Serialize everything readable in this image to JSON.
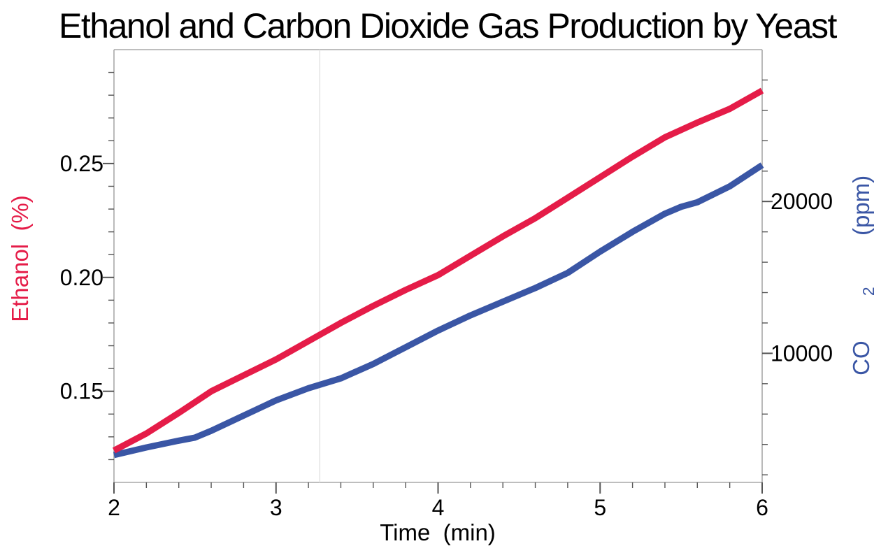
{
  "title": "Ethanol and Carbon Dioxide Gas Production by Yeast",
  "chart_data": {
    "type": "line",
    "title": "Ethanol and Carbon Dioxide Gas Production by Yeast",
    "grid": "off",
    "annotations": {
      "vertical_gridline_x": 3.27
    },
    "axes": {
      "x": {
        "label": "Time  (min)",
        "min": 2,
        "max": 6,
        "major_tick_values": [
          2,
          3,
          4,
          5,
          6
        ],
        "major_tick_labels": [
          "2",
          "3",
          "4",
          "5",
          "6"
        ],
        "minor_tick_step": 0.2
      },
      "y_left": {
        "label": "Ethanol  (%)",
        "color": "#e51c48",
        "min": 0.11,
        "max": 0.3,
        "major_tick_values": [
          0.15,
          0.2,
          0.25
        ],
        "major_tick_labels": [
          "0.15",
          "0.20",
          "0.25"
        ],
        "minor_tick_step": 0.01
      },
      "y_right": {
        "label": "CO₂ (ppm)",
        "label_parts": {
          "base": "CO",
          "sub": "2",
          "rest": " (ppm)"
        },
        "color": "#3a56a5",
        "min": 1500,
        "max": 30000,
        "major_tick_values": [
          10000,
          20000
        ],
        "major_tick_labels": [
          "10000",
          "20000"
        ],
        "minor_tick_step": 2000
      }
    },
    "series": [
      {
        "name": "CO2",
        "axis": "right",
        "color": "#3a56a5",
        "points": [
          [
            2,
            3300
          ],
          [
            2.2,
            3800
          ],
          [
            2.4,
            4250
          ],
          [
            2.5,
            4450
          ],
          [
            2.6,
            4900
          ],
          [
            2.8,
            5900
          ],
          [
            3,
            6900
          ],
          [
            3.2,
            7700
          ],
          [
            3.4,
            8350
          ],
          [
            3.6,
            9300
          ],
          [
            3.8,
            10400
          ],
          [
            4,
            11500
          ],
          [
            4.2,
            12500
          ],
          [
            4.4,
            13400
          ],
          [
            4.6,
            14300
          ],
          [
            4.8,
            15300
          ],
          [
            5,
            16700
          ],
          [
            5.2,
            18000
          ],
          [
            5.4,
            19200
          ],
          [
            5.5,
            19650
          ],
          [
            5.6,
            19950
          ],
          [
            5.8,
            21000
          ],
          [
            6,
            22400
          ]
        ]
      },
      {
        "name": "Ethanol",
        "axis": "left",
        "color": "#e51c48",
        "points": [
          [
            2,
            0.124
          ],
          [
            2.2,
            0.1315
          ],
          [
            2.4,
            0.1405
          ],
          [
            2.6,
            0.15
          ],
          [
            2.8,
            0.157
          ],
          [
            3,
            0.164
          ],
          [
            3.2,
            0.172
          ],
          [
            3.4,
            0.18
          ],
          [
            3.6,
            0.1875
          ],
          [
            3.8,
            0.1945
          ],
          [
            4,
            0.201
          ],
          [
            4.2,
            0.2095
          ],
          [
            4.4,
            0.218
          ],
          [
            4.6,
            0.226
          ],
          [
            4.8,
            0.235
          ],
          [
            5,
            0.244
          ],
          [
            5.2,
            0.253
          ],
          [
            5.4,
            0.2615
          ],
          [
            5.6,
            0.268
          ],
          [
            5.8,
            0.274
          ],
          [
            6,
            0.282
          ]
        ]
      }
    ],
    "style": {
      "frame_color": "#a8a8a8",
      "tick_color": "#555555",
      "tick_label_color": "#000000",
      "gridline_color": "#e2e2e2",
      "line_width": 9
    }
  }
}
